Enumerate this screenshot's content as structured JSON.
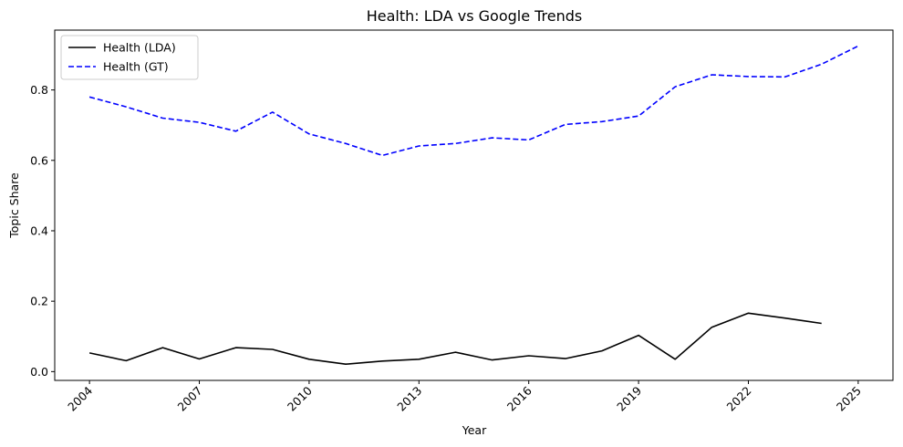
{
  "chart_data": {
    "type": "line",
    "title": "Health: LDA vs Google Trends",
    "xlabel": "Year",
    "ylabel": "Topic Share",
    "xlim": [
      2003.05,
      2025.95
    ],
    "ylim": [
      -0.025,
      0.97
    ],
    "xticks": [
      2004,
      2007,
      2010,
      2013,
      2016,
      2019,
      2022,
      2025
    ],
    "yticks": [
      0.0,
      0.2,
      0.4,
      0.6,
      0.8
    ],
    "ytick_labels": [
      "0.0",
      "0.2",
      "0.4",
      "0.6",
      "0.8"
    ],
    "grid": false,
    "legend_position": "top-left",
    "series": [
      {
        "name": "Health (LDA)",
        "color": "#000000",
        "style": "solid",
        "x": [
          2004,
          2005,
          2006,
          2007,
          2008,
          2009,
          2010,
          2011,
          2012,
          2013,
          2014,
          2015,
          2016,
          2017,
          2018,
          2019,
          2020,
          2021,
          2022,
          2023,
          2024
        ],
        "values": [
          0.053,
          0.031,
          0.068,
          0.036,
          0.068,
          0.063,
          0.035,
          0.021,
          0.03,
          0.035,
          0.055,
          0.033,
          0.045,
          0.037,
          0.059,
          0.103,
          0.035,
          0.126,
          0.166,
          0.152,
          0.137
        ]
      },
      {
        "name": "Health (GT)",
        "color": "#0000ff",
        "style": "dashed",
        "x": [
          2004,
          2005,
          2006,
          2007,
          2008,
          2009,
          2010,
          2011,
          2012,
          2013,
          2014,
          2015,
          2016,
          2017,
          2018,
          2019,
          2020,
          2021,
          2022,
          2023,
          2024,
          2025
        ],
        "values": [
          0.78,
          0.752,
          0.72,
          0.708,
          0.683,
          0.737,
          0.675,
          0.648,
          0.614,
          0.641,
          0.648,
          0.664,
          0.658,
          0.702,
          0.71,
          0.726,
          0.809,
          0.843,
          0.838,
          0.837,
          0.873,
          0.925
        ]
      }
    ]
  }
}
